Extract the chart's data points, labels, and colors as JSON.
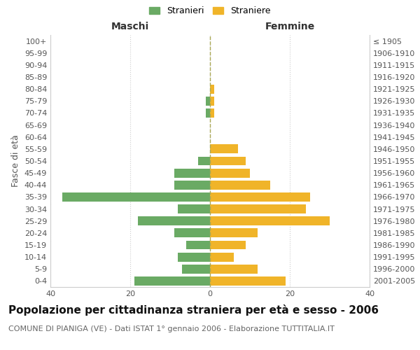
{
  "age_groups": [
    "0-4",
    "5-9",
    "10-14",
    "15-19",
    "20-24",
    "25-29",
    "30-34",
    "35-39",
    "40-44",
    "45-49",
    "50-54",
    "55-59",
    "60-64",
    "65-69",
    "70-74",
    "75-79",
    "80-84",
    "85-89",
    "90-94",
    "95-99",
    "100+"
  ],
  "birth_years": [
    "2001-2005",
    "1996-2000",
    "1991-1995",
    "1986-1990",
    "1981-1985",
    "1976-1980",
    "1971-1975",
    "1966-1970",
    "1961-1965",
    "1956-1960",
    "1951-1955",
    "1946-1950",
    "1941-1945",
    "1936-1940",
    "1931-1935",
    "1926-1930",
    "1921-1925",
    "1916-1920",
    "1911-1915",
    "1906-1910",
    "≤ 1905"
  ],
  "maschi": [
    19,
    7,
    8,
    6,
    9,
    18,
    8,
    37,
    9,
    9,
    3,
    0,
    0,
    0,
    1,
    1,
    0,
    0,
    0,
    0,
    0
  ],
  "femmine": [
    19,
    12,
    6,
    9,
    12,
    30,
    24,
    25,
    15,
    10,
    9,
    7,
    0,
    0,
    1,
    1,
    1,
    0,
    0,
    0,
    0
  ],
  "maschi_color": "#6aaa64",
  "femmine_color": "#f0b429",
  "legend_maschi": "Stranieri",
  "legend_femmine": "Straniere",
  "header_left": "Maschi",
  "header_right": "Femmine",
  "ylabel_left": "Fasce di età",
  "title": "Popolazione per cittadinanza straniera per età e sesso - 2006",
  "subtitle": "COMUNE DI PIANIGA (VE) - Dati ISTAT 1° gennaio 2006 - Elaborazione TUTTITALIA.IT",
  "xlim": 40,
  "bg_color": "#ffffff",
  "grid_color": "#cccccc",
  "title_fontsize": 11,
  "subtitle_fontsize": 8,
  "header_fontsize": 10,
  "axis_label_fontsize": 9,
  "tick_fontsize": 8
}
